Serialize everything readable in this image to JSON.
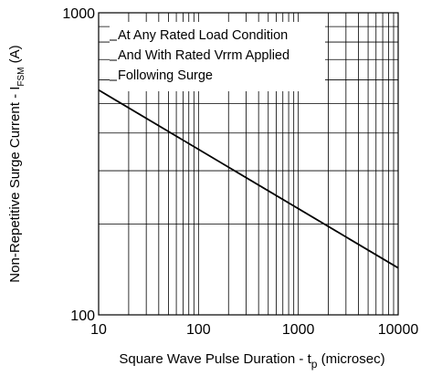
{
  "chart_data": {
    "type": "line",
    "title": "",
    "xlabel": "Square Wave Pulse Duration - t",
    "xlabel_sub": "p",
    "xlabel_suffix": " (microsec)",
    "ylabel": "Non-Repetitive Surge Current - I",
    "ylabel_sub": "FSM",
    "ylabel_suffix": " (A)",
    "x_scale": "log",
    "y_scale": "log",
    "xlim": [
      10,
      10000
    ],
    "ylim": [
      100,
      1000
    ],
    "x_ticks": [
      10,
      100,
      1000,
      10000
    ],
    "x_tick_labels": [
      "10",
      "100",
      "1000",
      "10000"
    ],
    "y_ticks": [
      100,
      1000
    ],
    "y_tick_labels": [
      "100",
      "1000"
    ],
    "grid": true,
    "annotations": [
      "At Any Rated Load Condition",
      "And With Rated Vrrm Applied",
      "Following Surge"
    ],
    "annotation_placement": "top-left",
    "series": [
      {
        "x": [
          10,
          10000
        ],
        "y": [
          555,
          143
        ]
      }
    ]
  }
}
